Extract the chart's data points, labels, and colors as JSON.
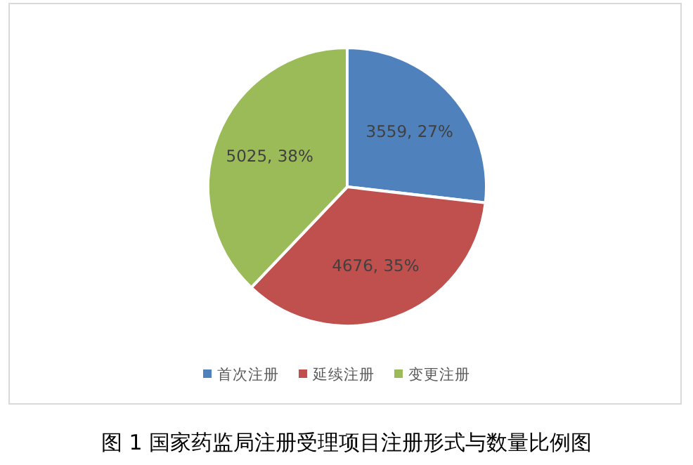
{
  "chart_data": {
    "type": "pie",
    "title": "图 1  国家药监局注册受理项目注册形式与数量比例图",
    "categories": [
      "首次注册",
      "延续注册",
      "变更注册"
    ],
    "values": [
      3559,
      4676,
      5025
    ],
    "colors": [
      "#4f81bd",
      "#c0504d",
      "#9bbb59"
    ],
    "value_labels": [
      "3559, 27%",
      "4676, 35%",
      "5025, 38%"
    ],
    "legend": "bottom"
  }
}
